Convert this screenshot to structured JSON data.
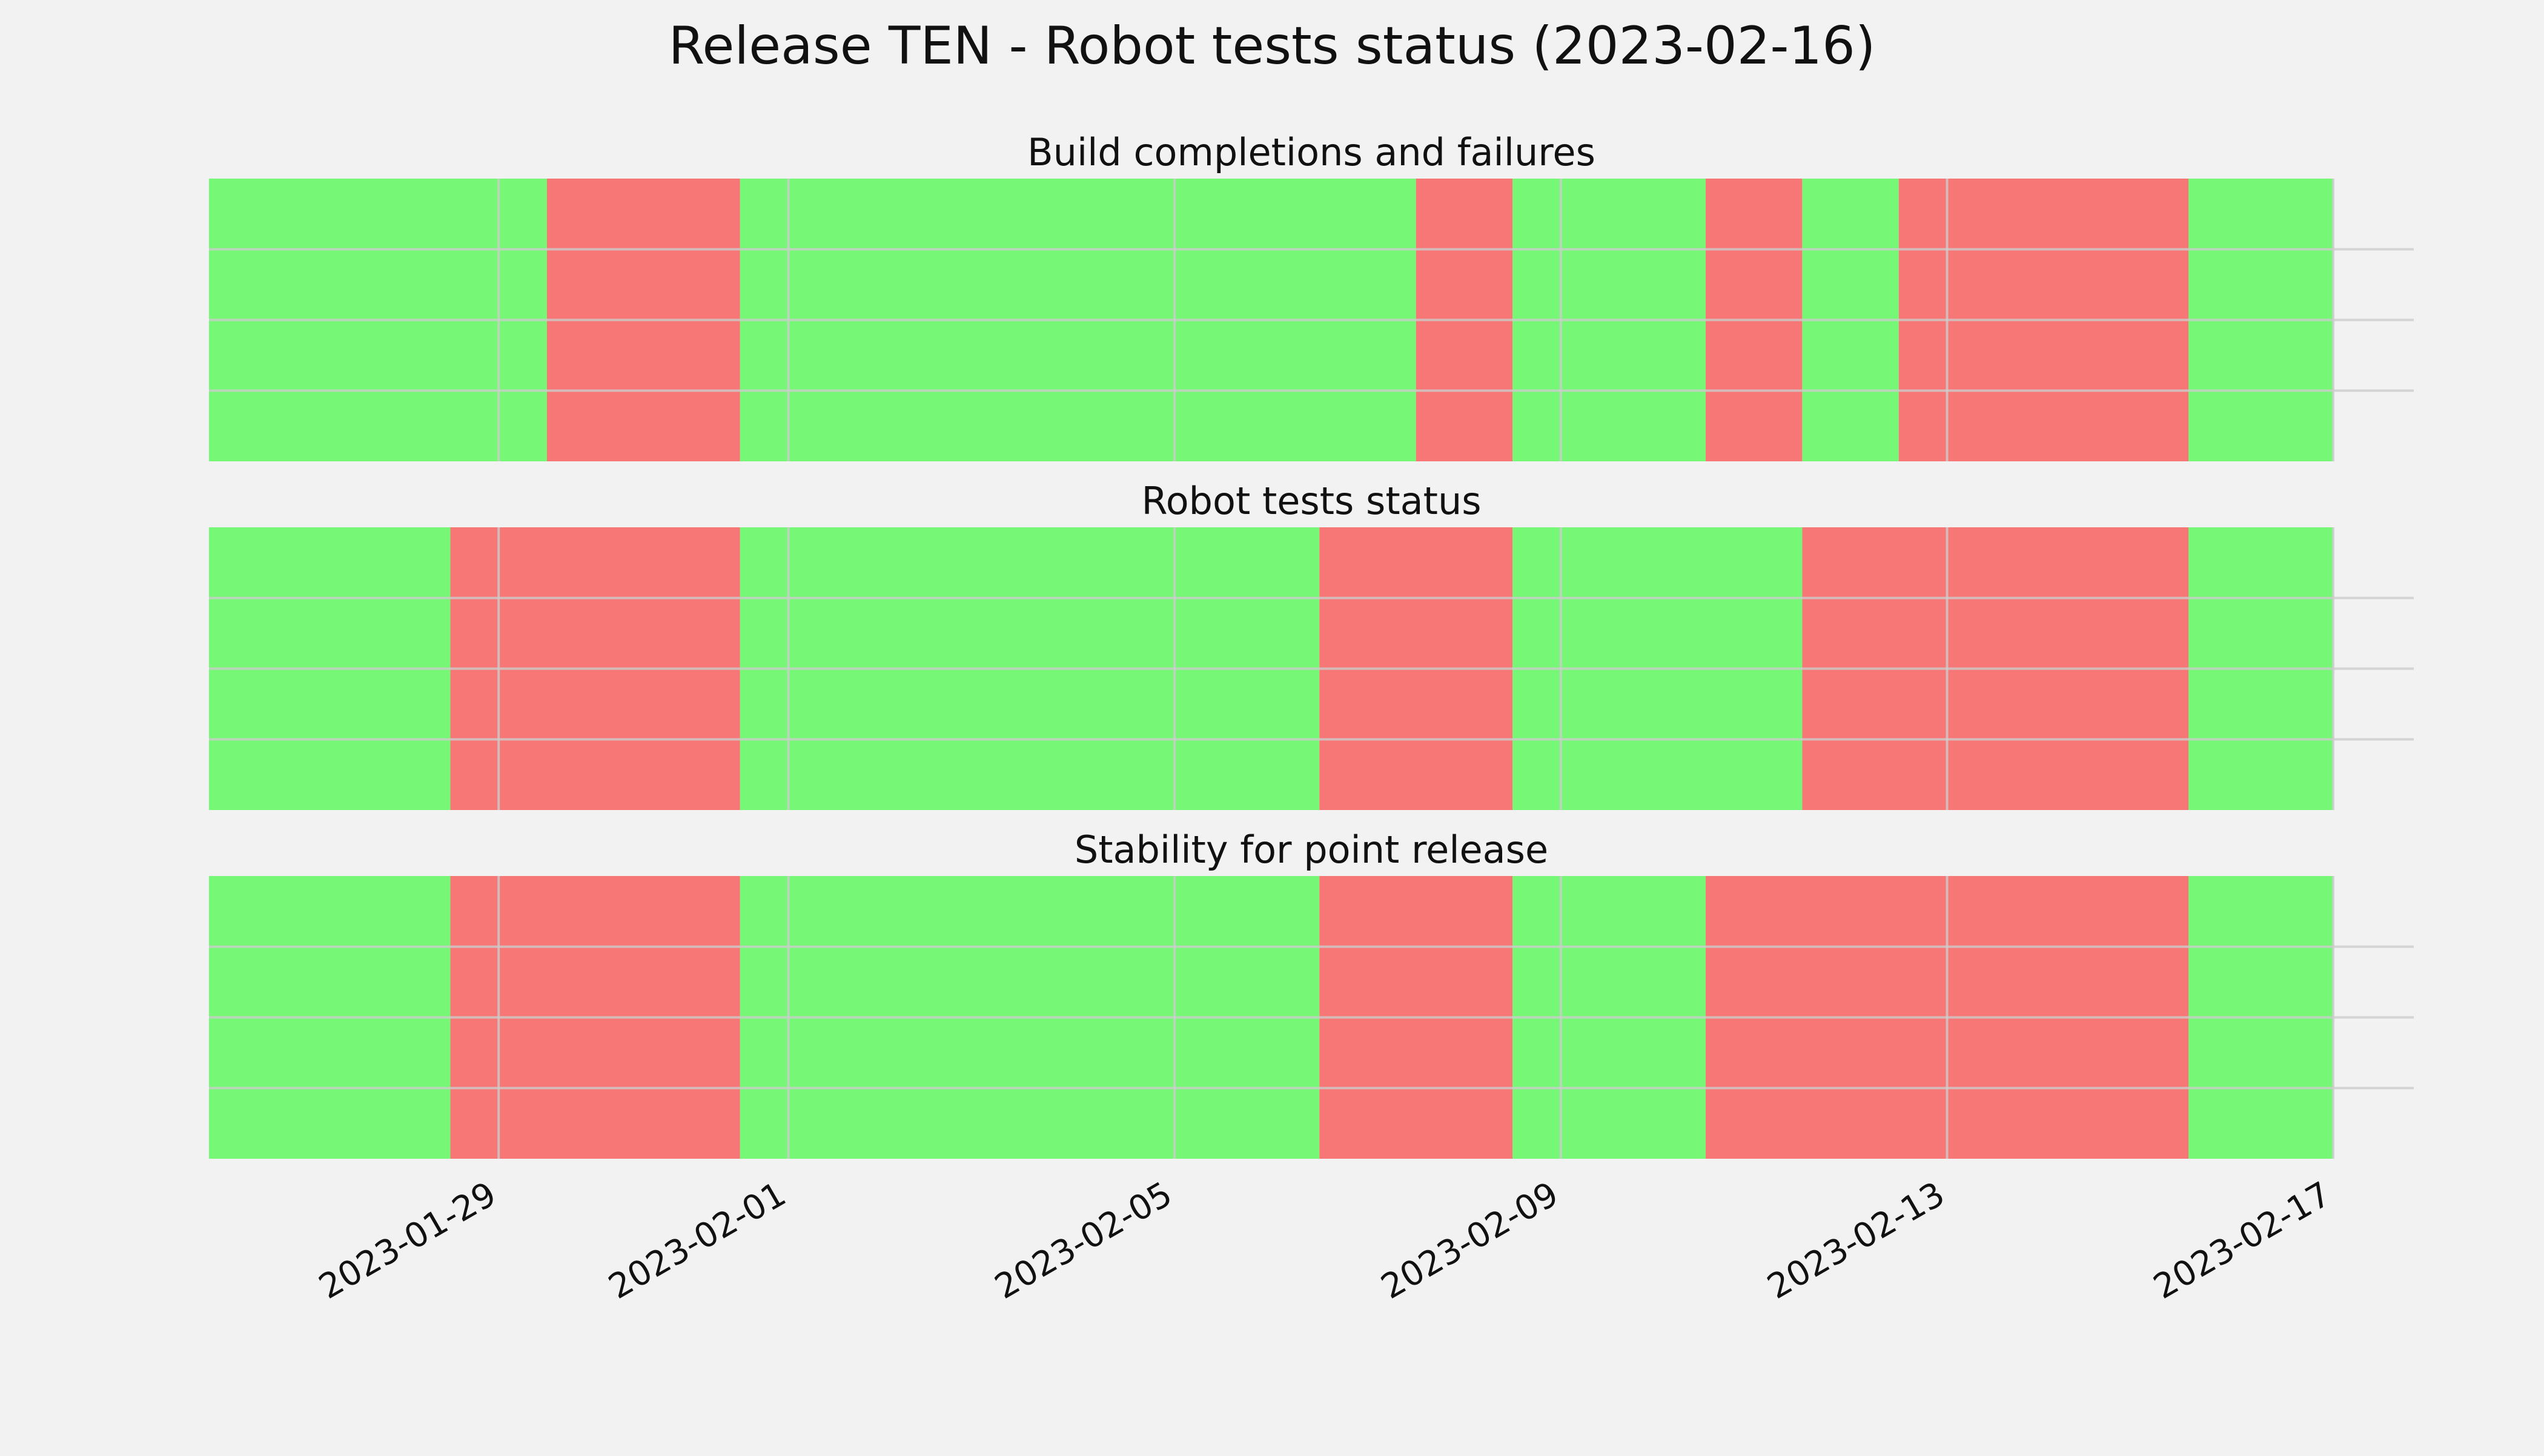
{
  "chart_data": {
    "type": "timeline",
    "title": "Release TEN - Robot tests status (2023-02-16)",
    "x_range": [
      "2023-01-26",
      "2023-02-17T20:00"
    ],
    "x_ticks": [
      "2023-01-29",
      "2023-02-01",
      "2023-02-05",
      "2023-02-09",
      "2023-02-13",
      "2023-02-17"
    ],
    "grid": true,
    "colors": {
      "pass": "#76f776",
      "fail": "#f77676",
      "background": "#f2f2f2",
      "grid": "#cccccc"
    },
    "panels": [
      {
        "title": "Build completions and failures",
        "segments": [
          {
            "start": "2023-01-26",
            "end": "2023-01-29T12:00",
            "status": "pass"
          },
          {
            "start": "2023-01-29T12:00",
            "end": "2023-01-31T12:00",
            "status": "fail"
          },
          {
            "start": "2023-01-31T12:00",
            "end": "2023-02-07T12:00",
            "status": "pass"
          },
          {
            "start": "2023-02-07T12:00",
            "end": "2023-02-08T12:00",
            "status": "fail"
          },
          {
            "start": "2023-02-08T12:00",
            "end": "2023-02-10T12:00",
            "status": "pass"
          },
          {
            "start": "2023-02-10T12:00",
            "end": "2023-02-11T12:00",
            "status": "fail"
          },
          {
            "start": "2023-02-11T12:00",
            "end": "2023-02-12T12:00",
            "status": "pass"
          },
          {
            "start": "2023-02-12T12:00",
            "end": "2023-02-15T12:00",
            "status": "fail"
          },
          {
            "start": "2023-02-15T12:00",
            "end": "2023-02-17",
            "status": "pass"
          }
        ]
      },
      {
        "title": "Robot tests status",
        "segments": [
          {
            "start": "2023-01-26",
            "end": "2023-01-28T12:00",
            "status": "pass"
          },
          {
            "start": "2023-01-28T12:00",
            "end": "2023-01-31T12:00",
            "status": "fail"
          },
          {
            "start": "2023-01-31T12:00",
            "end": "2023-02-06T12:00",
            "status": "pass"
          },
          {
            "start": "2023-02-06T12:00",
            "end": "2023-02-08T12:00",
            "status": "fail"
          },
          {
            "start": "2023-02-08T12:00",
            "end": "2023-02-11T12:00",
            "status": "pass"
          },
          {
            "start": "2023-02-11T12:00",
            "end": "2023-02-15T12:00",
            "status": "fail"
          },
          {
            "start": "2023-02-15T12:00",
            "end": "2023-02-17",
            "status": "pass"
          }
        ]
      },
      {
        "title": "Stability for point release",
        "segments": [
          {
            "start": "2023-01-26",
            "end": "2023-01-28T12:00",
            "status": "pass"
          },
          {
            "start": "2023-01-28T12:00",
            "end": "2023-01-31T12:00",
            "status": "fail"
          },
          {
            "start": "2023-01-31T12:00",
            "end": "2023-02-06T12:00",
            "status": "pass"
          },
          {
            "start": "2023-02-06T12:00",
            "end": "2023-02-08T12:00",
            "status": "fail"
          },
          {
            "start": "2023-02-08T12:00",
            "end": "2023-02-10T12:00",
            "status": "pass"
          },
          {
            "start": "2023-02-10T12:00",
            "end": "2023-02-15T12:00",
            "status": "fail"
          },
          {
            "start": "2023-02-15T12:00",
            "end": "2023-02-17",
            "status": "pass"
          }
        ]
      }
    ]
  }
}
